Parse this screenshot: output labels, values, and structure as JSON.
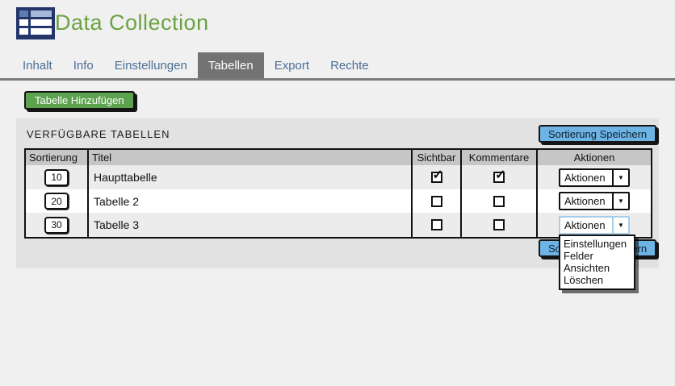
{
  "app": {
    "title": "Data Collection"
  },
  "icons": {
    "logo": "table-grid-icon",
    "check": "✓",
    "dropdown_arrow": "▼"
  },
  "tabs": [
    {
      "label": "Inhalt",
      "active": false
    },
    {
      "label": "Info",
      "active": false
    },
    {
      "label": "Einstellungen",
      "active": false
    },
    {
      "label": "Tabellen",
      "active": true
    },
    {
      "label": "Export",
      "active": false
    },
    {
      "label": "Rechte",
      "active": false
    }
  ],
  "toolbar": {
    "add_table_label": "Tabelle Hinzufügen"
  },
  "panel": {
    "section_title": "VERFÜGBARE TABELLEN",
    "save_sort_label_top": "Sortierung Speichern",
    "save_sort_label_bottom": "Sortierung Speichern"
  },
  "table": {
    "headers": [
      "Sortierung",
      "Titel",
      "Sichtbar",
      "Kommentare",
      "Aktionen"
    ],
    "rows": [
      {
        "sort": "10",
        "title": "Haupttabelle",
        "visible": true,
        "comments": true,
        "action_label": "Aktionen"
      },
      {
        "sort": "20",
        "title": "Tabelle 2",
        "visible": false,
        "comments": false,
        "action_label": "Aktionen"
      },
      {
        "sort": "30",
        "title": "Tabelle 3",
        "visible": false,
        "comments": false,
        "action_label": "Aktionen"
      }
    ]
  },
  "action_menu": {
    "items": [
      "Einstellungen",
      "Felder",
      "Ansichten",
      "Löschen"
    ]
  },
  "colors": {
    "title_green": "#6aa342",
    "button_green": "#5da24e",
    "button_blue": "#6db3e4",
    "tab_text": "#4a6e96",
    "tab_active_bg": "#737373",
    "panel_bg": "#e2e2e2",
    "table_header_bg": "#c6c6c6",
    "row_alt_bg": "#ececec",
    "focus_border_blue": "#a8cde9"
  }
}
